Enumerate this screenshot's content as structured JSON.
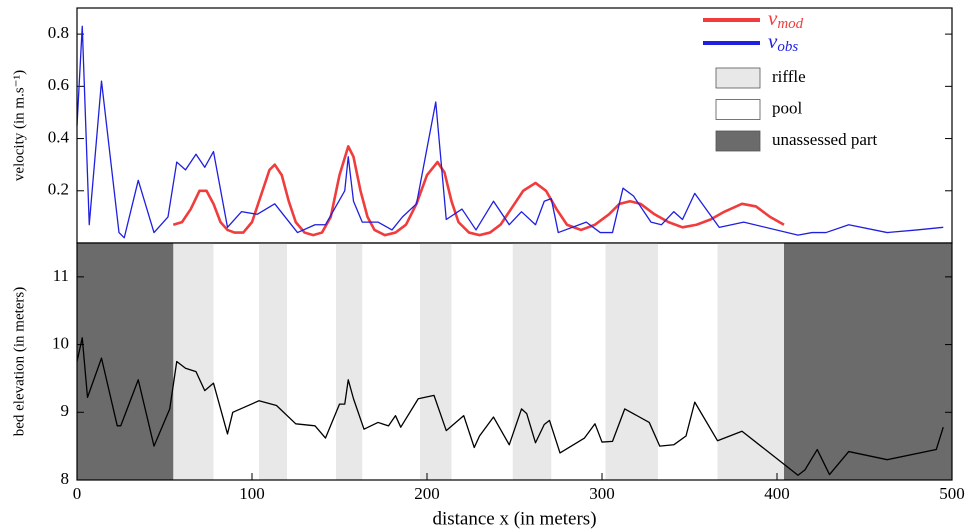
{
  "chart_data": [
    {
      "type": "line",
      "ylabel": "velocity (in m.s⁻¹)",
      "xlim": [
        0,
        500
      ],
      "ylim": [
        0,
        0.9
      ],
      "yticks": [
        0.2,
        0.4,
        0.6,
        0.8
      ],
      "legend": "upper right",
      "series": [
        {
          "name": "v_mod",
          "color": "#f03c3c",
          "x": [
            55,
            60,
            65,
            70,
            74,
            78,
            82,
            86,
            90,
            95,
            100,
            105,
            110,
            113,
            117,
            121,
            125,
            130,
            135,
            140,
            145,
            150,
            155,
            158,
            162,
            166,
            170,
            176,
            182,
            188,
            194,
            200,
            206,
            210,
            214,
            218,
            224,
            230,
            236,
            242,
            248,
            255,
            262,
            268,
            274,
            280,
            288,
            296,
            304,
            310,
            316,
            322,
            330,
            338,
            346,
            354,
            362,
            370,
            380,
            388,
            396,
            404
          ],
          "values": [
            0.07,
            0.08,
            0.13,
            0.2,
            0.2,
            0.15,
            0.08,
            0.05,
            0.04,
            0.04,
            0.08,
            0.18,
            0.28,
            0.3,
            0.26,
            0.16,
            0.08,
            0.04,
            0.03,
            0.04,
            0.1,
            0.26,
            0.37,
            0.33,
            0.2,
            0.1,
            0.05,
            0.03,
            0.04,
            0.07,
            0.15,
            0.26,
            0.31,
            0.27,
            0.16,
            0.08,
            0.04,
            0.03,
            0.04,
            0.07,
            0.13,
            0.2,
            0.23,
            0.2,
            0.13,
            0.07,
            0.05,
            0.07,
            0.11,
            0.15,
            0.16,
            0.15,
            0.11,
            0.08,
            0.06,
            0.07,
            0.09,
            0.12,
            0.15,
            0.14,
            0.1,
            0.07
          ]
        },
        {
          "name": "v_obs",
          "color": "#1f1fe0",
          "x": [
            0,
            3,
            7,
            14,
            24,
            27,
            35,
            44,
            52,
            57,
            62,
            68,
            73,
            78,
            86,
            94,
            103,
            113,
            126,
            136,
            142,
            153,
            155,
            158,
            163,
            172,
            180,
            186,
            194,
            205,
            211,
            220,
            228,
            238,
            247,
            254,
            262,
            267,
            271,
            275,
            291,
            299,
            306,
            312,
            318,
            328,
            334,
            341,
            346,
            353,
            367,
            381,
            412,
            420,
            428,
            441,
            463,
            480,
            495
          ],
          "values": [
            0.45,
            0.83,
            0.07,
            0.62,
            0.04,
            0.02,
            0.24,
            0.04,
            0.1,
            0.31,
            0.28,
            0.34,
            0.29,
            0.35,
            0.06,
            0.12,
            0.11,
            0.15,
            0.04,
            0.07,
            0.07,
            0.2,
            0.33,
            0.16,
            0.08,
            0.08,
            0.05,
            0.1,
            0.15,
            0.54,
            0.09,
            0.13,
            0.05,
            0.16,
            0.07,
            0.12,
            0.07,
            0.16,
            0.17,
            0.04,
            0.08,
            0.04,
            0.04,
            0.21,
            0.18,
            0.08,
            0.07,
            0.12,
            0.09,
            0.19,
            0.06,
            0.08,
            0.03,
            0.04,
            0.04,
            0.07,
            0.04,
            0.05,
            0.06
          ]
        }
      ]
    },
    {
      "type": "line",
      "xlabel": "distance x (in meters)",
      "ylabel": "bed elevation (in meters)",
      "xlim": [
        0,
        500
      ],
      "xticks": [
        0,
        100,
        200,
        300,
        400,
        500
      ],
      "ylim": [
        8,
        11.5
      ],
      "yticks": [
        8,
        9,
        10,
        11
      ],
      "regions": [
        {
          "label": "riffle",
          "color": "#e8e8e8",
          "spans": [
            [
              55,
              78
            ],
            [
              104,
              120
            ],
            [
              148,
              163
            ],
            [
              196,
              214
            ],
            [
              249,
              271
            ],
            [
              302,
              332
            ],
            [
              366,
              404
            ]
          ]
        },
        {
          "label": "pool",
          "color": "#ffffff"
        },
        {
          "label": "unassessed part",
          "color": "#6b6b6b",
          "spans": [
            [
              0,
              55
            ],
            [
              404,
              500
            ]
          ]
        }
      ],
      "series": [
        {
          "color": "#000000",
          "x": [
            0,
            3,
            6,
            14,
            23,
            25,
            35,
            44,
            53,
            57,
            62,
            68,
            73,
            78,
            86,
            89,
            104,
            114,
            125,
            136,
            142,
            150,
            153,
            155,
            158,
            164,
            172,
            178,
            182,
            185,
            195,
            204,
            211,
            221,
            227,
            230,
            238,
            247,
            254,
            257,
            262,
            267,
            270,
            276,
            290,
            296,
            300,
            306,
            313,
            327,
            333,
            341,
            348,
            353,
            366,
            380,
            412,
            416,
            423,
            430,
            441,
            463,
            491,
            495
          ],
          "values": [
            9.75,
            10.1,
            9.22,
            9.8,
            8.8,
            8.8,
            9.48,
            8.5,
            9.05,
            9.75,
            9.65,
            9.6,
            9.32,
            9.43,
            8.68,
            9.0,
            9.17,
            9.1,
            8.83,
            8.8,
            8.62,
            9.12,
            9.12,
            9.48,
            9.2,
            8.75,
            8.85,
            8.8,
            8.95,
            8.78,
            9.2,
            9.25,
            8.73,
            8.95,
            8.48,
            8.65,
            8.93,
            8.52,
            9.05,
            8.98,
            8.55,
            8.82,
            8.88,
            8.4,
            8.62,
            8.83,
            8.56,
            8.57,
            9.05,
            8.85,
            8.5,
            8.52,
            8.65,
            9.15,
            8.58,
            8.72,
            8.07,
            8.15,
            8.45,
            8.08,
            8.42,
            8.3,
            8.45,
            8.78
          ]
        }
      ]
    }
  ]
}
